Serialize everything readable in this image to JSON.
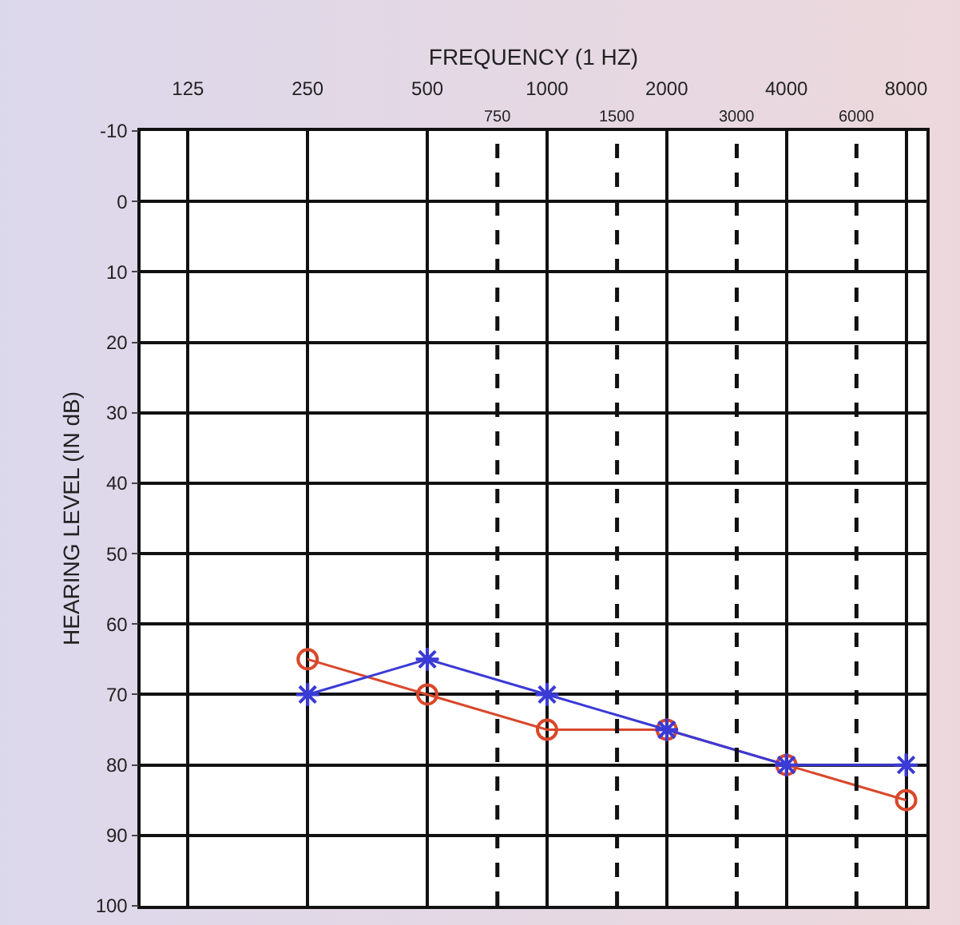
{
  "chart_data": {
    "type": "line",
    "xlabel": "FREQUENCY (1 HZ)",
    "ylabel": "HEARING LEVEL (IN dB)",
    "log": "x",
    "x": [
      250,
      500,
      1000,
      2000,
      4000,
      8000
    ],
    "series": [
      {
        "color": "#d9482b",
        "marker": "circle",
        "values": [
          65,
          70,
          75,
          75,
          80,
          85
        ]
      },
      {
        "color": "#3a3ad6",
        "marker": "cross",
        "values": [
          70,
          65,
          70,
          75,
          80,
          80
        ]
      }
    ],
    "xlim": [
      95,
      9000
    ],
    "xticks": [
      125,
      250,
      500,
      1000,
      2000,
      4000,
      8000
    ],
    "ref_lines": [
      {
        "axis": "x",
        "value": 750,
        "label": "750",
        "line_style": "dashed"
      },
      {
        "axis": "x",
        "value": 1500,
        "label": "1500",
        "line_style": "dashed"
      },
      {
        "axis": "x",
        "value": 3000,
        "label": "3000",
        "line_style": "dashed"
      },
      {
        "axis": "x",
        "value": 6000,
        "label": "6000",
        "line_style": "dashed"
      }
    ],
    "ylim": [
      100,
      -10
    ],
    "yticks": [
      -10,
      0,
      10,
      20,
      30,
      40,
      50,
      60,
      70,
      80,
      90,
      100
    ],
    "grid": true,
    "line_style": "solid"
  }
}
